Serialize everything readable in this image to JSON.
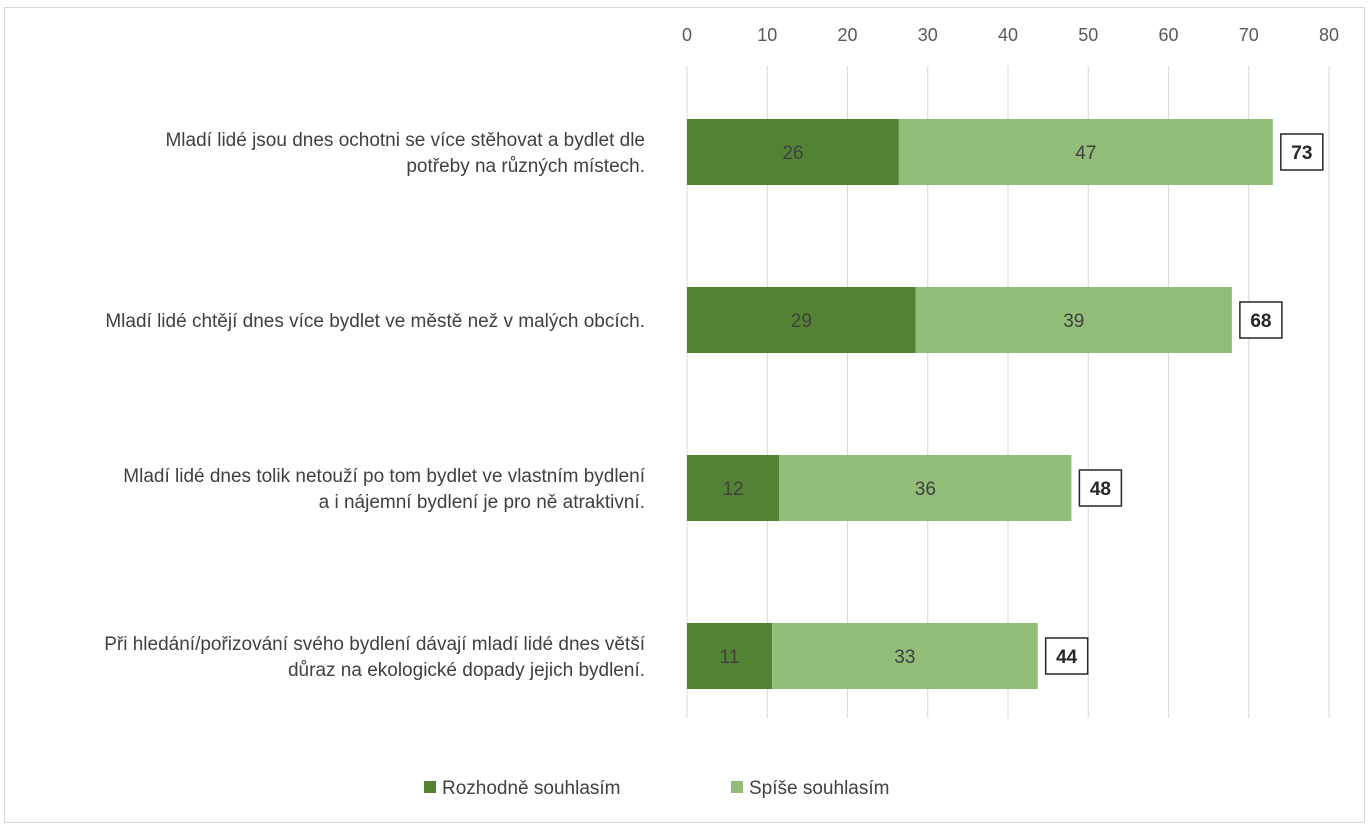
{
  "chart_data": {
    "type": "bar",
    "orientation": "horizontal",
    "stacked": true,
    "title": "",
    "xlabel": "",
    "ylabel": "",
    "xlim": [
      0,
      80
    ],
    "x_ticks": [
      0,
      10,
      20,
      30,
      40,
      50,
      60,
      70,
      80
    ],
    "x_axis_position": "top",
    "grid": true,
    "legend_position": "bottom",
    "categories": [
      [
        "Mladí lidé jsou dnes ochotni se více stěhovat a bydlet dle",
        "potřeby na různých místech."
      ],
      [
        "Mladí lidé chtějí dnes více bydlet ve městě než v malých obcích."
      ],
      [
        "Mladí lidé dnes tolik netouží po tom bydlet ve vlastním bydlení",
        "a i nájemní bydlení je pro ně atraktivní."
      ],
      [
        "Při hledání/pořizování svého bydlení dávají mladí lidé dnes větší",
        "důraz na ekologické dopady jejich bydlení."
      ]
    ],
    "series": [
      {
        "name": "Rozhodně souhlasím",
        "color": "#548235",
        "values": [
          26.4,
          28.5,
          11.5,
          10.6
        ],
        "labels": [
          "26",
          "29",
          "12",
          "11"
        ]
      },
      {
        "name": "Spíše souhlasím",
        "color": "#92bd78",
        "values": [
          46.6,
          39.4,
          36.4,
          33.1
        ],
        "labels": [
          "47",
          "39",
          "36",
          "33"
        ]
      }
    ],
    "totals": [
      "73",
      "68",
      "48",
      "44"
    ]
  }
}
